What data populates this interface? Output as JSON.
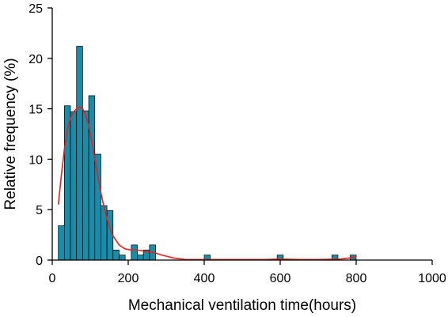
{
  "chart_data": {
    "type": "bar",
    "title": "",
    "xlabel": "Mechanical ventilation time(hours)",
    "ylabel": "Relative frequency (%)",
    "xlim": [
      0,
      1000
    ],
    "ylim": [
      0,
      25
    ],
    "x_ticks": [
      0,
      200,
      400,
      600,
      800,
      1000
    ],
    "y_ticks": [
      0,
      5,
      10,
      15,
      20,
      25
    ],
    "bin_width": 16,
    "bins": [
      {
        "start": 16,
        "value": 3.4
      },
      {
        "start": 32,
        "value": 15.3
      },
      {
        "start": 48,
        "value": 14.7
      },
      {
        "start": 64,
        "value": 21.2
      },
      {
        "start": 80,
        "value": 14.8
      },
      {
        "start": 96,
        "value": 16.3
      },
      {
        "start": 112,
        "value": 10.5
      },
      {
        "start": 128,
        "value": 5.4
      },
      {
        "start": 144,
        "value": 4.9
      },
      {
        "start": 160,
        "value": 1.0
      },
      {
        "start": 176,
        "value": 0.5
      },
      {
        "start": 208,
        "value": 1.5
      },
      {
        "start": 224,
        "value": 0.5
      },
      {
        "start": 240,
        "value": 1.0
      },
      {
        "start": 256,
        "value": 1.5
      },
      {
        "start": 400,
        "value": 0.5
      },
      {
        "start": 592,
        "value": 0.5
      },
      {
        "start": 736,
        "value": 0.5
      },
      {
        "start": 784,
        "value": 0.5
      }
    ],
    "density_curve": {
      "x": [
        16,
        24,
        32,
        40,
        48,
        56,
        64,
        72,
        80,
        88,
        96,
        104,
        112,
        120,
        128,
        136,
        144,
        152,
        160,
        176,
        192,
        208,
        224,
        240,
        256,
        272,
        288,
        320,
        352,
        400,
        450,
        500,
        560,
        600,
        650,
        700,
        760,
        800
      ],
      "y": [
        5.5,
        8.4,
        11.0,
        12.9,
        14.1,
        14.7,
        15.0,
        15.2,
        15.0,
        14.4,
        13.3,
        11.8,
        10.1,
        8.4,
        6.7,
        5.3,
        4.1,
        3.1,
        2.4,
        1.5,
        1.1,
        1.0,
        1.0,
        0.9,
        0.8,
        0.7,
        0.5,
        0.2,
        0.05,
        0.05,
        0.05,
        0.05,
        0.05,
        0.1,
        0.05,
        0.05,
        0.1,
        0.3
      ]
    },
    "grid": false,
    "colors": {
      "bar_fill": "#1a8ca8",
      "bar_edge": "#000000",
      "curve": "#e8201f",
      "axis": "#000000"
    }
  }
}
